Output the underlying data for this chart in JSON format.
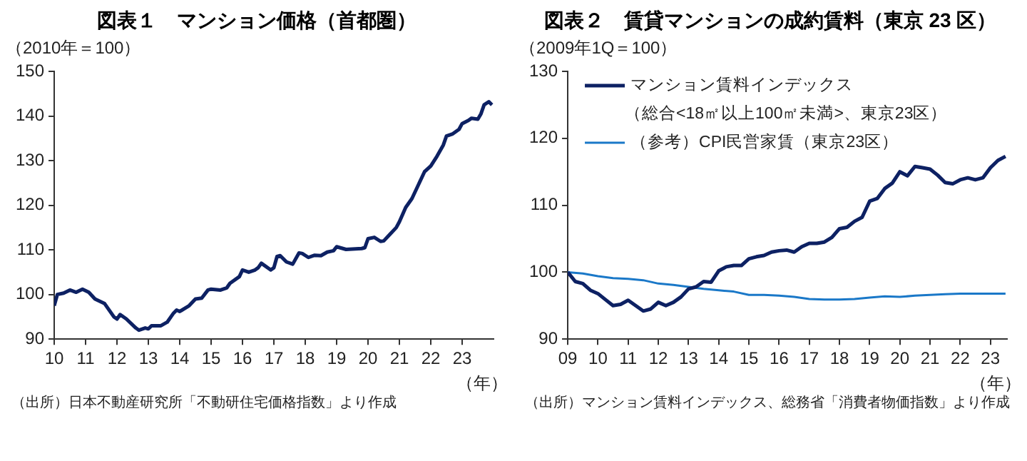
{
  "chart_data": [
    {
      "type": "line",
      "title": "図表１　マンション価格（首都圏）",
      "ylabel": "（2010年＝100）",
      "xlabel": "（年）",
      "xlim": [
        2010,
        2024
      ],
      "ylim": [
        90,
        150
      ],
      "xticks": [
        {
          "value": 2010,
          "label": "10"
        },
        {
          "value": 2011,
          "label": "11"
        },
        {
          "value": 2012,
          "label": "12"
        },
        {
          "value": 2013,
          "label": "13"
        },
        {
          "value": 2014,
          "label": "14"
        },
        {
          "value": 2015,
          "label": "15"
        },
        {
          "value": 2016,
          "label": "16"
        },
        {
          "value": 2017,
          "label": "17"
        },
        {
          "value": 2018,
          "label": "18"
        },
        {
          "value": 2019,
          "label": "19"
        },
        {
          "value": 2020,
          "label": "20"
        },
        {
          "value": 2021,
          "label": "21"
        },
        {
          "value": 2022,
          "label": "22"
        },
        {
          "value": 2023,
          "label": "23"
        }
      ],
      "yticks": [
        90,
        100,
        110,
        120,
        130,
        140,
        150
      ],
      "grid": false,
      "legend": false,
      "marker": "none",
      "line_style": "solid",
      "series": [
        {
          "color": "#0d2163",
          "x": [
            2010.0,
            2010.1,
            2010.3,
            2010.5,
            2010.7,
            2010.9,
            2011.1,
            2011.3,
            2011.6,
            2011.9,
            2012.0,
            2012.1,
            2012.3,
            2012.6,
            2012.7,
            2012.9,
            2013.0,
            2013.1,
            2013.4,
            2013.6,
            2013.8,
            2013.9,
            2014.0,
            2014.3,
            2014.5,
            2014.7,
            2014.9,
            2015.0,
            2015.3,
            2015.5,
            2015.6,
            2015.9,
            2016.0,
            2016.2,
            2016.4,
            2016.5,
            2016.6,
            2016.9,
            2017.0,
            2017.1,
            2017.2,
            2017.4,
            2017.6,
            2017.8,
            2017.9,
            2018.1,
            2018.3,
            2018.5,
            2018.7,
            2018.9,
            2019.0,
            2019.3,
            2019.5,
            2019.8,
            2019.9,
            2020.0,
            2020.2,
            2020.4,
            2020.5,
            2020.7,
            2020.9,
            2021.0,
            2021.2,
            2021.4,
            2021.6,
            2021.8,
            2022.0,
            2022.2,
            2022.4,
            2022.5,
            2022.7,
            2022.9,
            2023.0,
            2023.2,
            2023.3,
            2023.5,
            2023.6,
            2023.7,
            2023.85,
            2023.95
          ],
          "values": [
            97.5,
            100,
            100.3,
            101,
            100.5,
            101.2,
            100.5,
            99,
            98,
            95,
            94.5,
            95.5,
            94.5,
            92.5,
            92,
            92.5,
            92.3,
            93,
            93,
            93.8,
            95.8,
            96.5,
            96.2,
            97.5,
            99,
            99.2,
            101,
            101.2,
            101,
            101.5,
            102.5,
            104,
            105.5,
            105,
            105.5,
            106,
            107,
            105.5,
            106,
            108.5,
            108.7,
            107.3,
            106.8,
            109.3,
            109.2,
            108.3,
            108.8,
            108.7,
            109.5,
            109.8,
            110.7,
            110.1,
            110.2,
            110.3,
            110.5,
            112.5,
            112.8,
            111.9,
            112,
            113.5,
            115,
            116.3,
            119.5,
            121.5,
            124.5,
            127.5,
            128.8,
            131,
            133.5,
            135.5,
            136,
            137,
            138.3,
            139,
            139.5,
            139.3,
            140.5,
            142.5,
            143.2,
            142.5
          ]
        }
      ],
      "annotations": [
        "（出所）日本不動産研究所「不動研住宅価格指数」より作成"
      ]
    },
    {
      "type": "line",
      "title": "図表２　賃貸マンションの成約賃料（東京 23 区）",
      "ylabel": "（2009年1Q＝100）",
      "xlabel": "（年）",
      "xlim": [
        2009,
        2023.55
      ],
      "ylim": [
        90,
        130
      ],
      "xticks": [
        {
          "value": 2009,
          "label": "09"
        },
        {
          "value": 2010,
          "label": "10"
        },
        {
          "value": 2011,
          "label": "11"
        },
        {
          "value": 2012,
          "label": "12"
        },
        {
          "value": 2013,
          "label": "13"
        },
        {
          "value": 2014,
          "label": "14"
        },
        {
          "value": 2015,
          "label": "15"
        },
        {
          "value": 2016,
          "label": "16"
        },
        {
          "value": 2017,
          "label": "17"
        },
        {
          "value": 2018,
          "label": "18"
        },
        {
          "value": 2019,
          "label": "19"
        },
        {
          "value": 2020,
          "label": "20"
        },
        {
          "value": 2021,
          "label": "21"
        },
        {
          "value": 2022,
          "label": "22"
        },
        {
          "value": 2023,
          "label": "23"
        }
      ],
      "yticks": [
        90,
        100,
        110,
        120,
        130
      ],
      "grid": false,
      "legend": "top left",
      "marker": "none",
      "line_style": "solid",
      "series": [
        {
          "name": "マンション賃料インデックス（総合<18㎡以上100㎡未満>、東京23区）",
          "color": "#0d2163",
          "x": [
            2009.0,
            2009.25,
            2009.5,
            2009.75,
            2010.0,
            2010.25,
            2010.5,
            2010.75,
            2011.0,
            2011.25,
            2011.5,
            2011.75,
            2012.0,
            2012.25,
            2012.5,
            2012.75,
            2013.0,
            2013.25,
            2013.5,
            2013.75,
            2014.0,
            2014.25,
            2014.5,
            2014.75,
            2015.0,
            2015.25,
            2015.5,
            2015.75,
            2016.0,
            2016.25,
            2016.5,
            2016.75,
            2017.0,
            2017.25,
            2017.5,
            2017.75,
            2018.0,
            2018.25,
            2018.5,
            2018.75,
            2019.0,
            2019.25,
            2019.5,
            2019.75,
            2020.0,
            2020.25,
            2020.5,
            2020.75,
            2021.0,
            2021.25,
            2021.5,
            2021.75,
            2022.0,
            2022.25,
            2022.5,
            2022.75,
            2023.0,
            2023.25,
            2023.5
          ],
          "values": [
            100,
            98.6,
            98.3,
            97.3,
            96.8,
            95.9,
            95,
            95.2,
            95.8,
            95,
            94.2,
            94.5,
            95.5,
            95,
            95.5,
            96.3,
            97.5,
            97.8,
            98.6,
            98.5,
            100.2,
            100.8,
            101,
            101,
            102,
            102.3,
            102.5,
            103,
            103.2,
            103.3,
            103,
            103.8,
            104.3,
            104.3,
            104.5,
            105.2,
            106.5,
            106.7,
            107.6,
            108.2,
            110.6,
            111,
            112.5,
            113.3,
            115,
            114.4,
            115.8,
            115.6,
            115.4,
            114.5,
            113.4,
            113.2,
            113.8,
            114.1,
            113.8,
            114.1,
            115.6,
            116.7,
            117.3
          ]
        },
        {
          "name": "（参考）CPI民営家賃（東京23区）",
          "color": "#1a78c8",
          "x": [
            2009.0,
            2009.5,
            2010.0,
            2010.5,
            2011.0,
            2011.5,
            2012.0,
            2012.5,
            2013.0,
            2013.5,
            2014.0,
            2014.5,
            2015.0,
            2015.5,
            2016.0,
            2016.5,
            2017.0,
            2017.5,
            2018.0,
            2018.5,
            2019.0,
            2019.5,
            2020.0,
            2020.5,
            2021.0,
            2021.5,
            2022.0,
            2022.5,
            2023.0,
            2023.5
          ],
          "values": [
            100,
            99.8,
            99.4,
            99.1,
            99,
            98.8,
            98.3,
            98.1,
            97.8,
            97.5,
            97.3,
            97.1,
            96.6,
            96.6,
            96.5,
            96.3,
            96,
            95.9,
            95.9,
            96,
            96.2,
            96.4,
            96.3,
            96.5,
            96.6,
            96.7,
            96.8,
            96.8,
            96.8,
            96.8
          ]
        }
      ],
      "annotations": [
        "（出所）マンション賃料インデックス、総務省「消費者物価指数」より作成"
      ]
    }
  ]
}
